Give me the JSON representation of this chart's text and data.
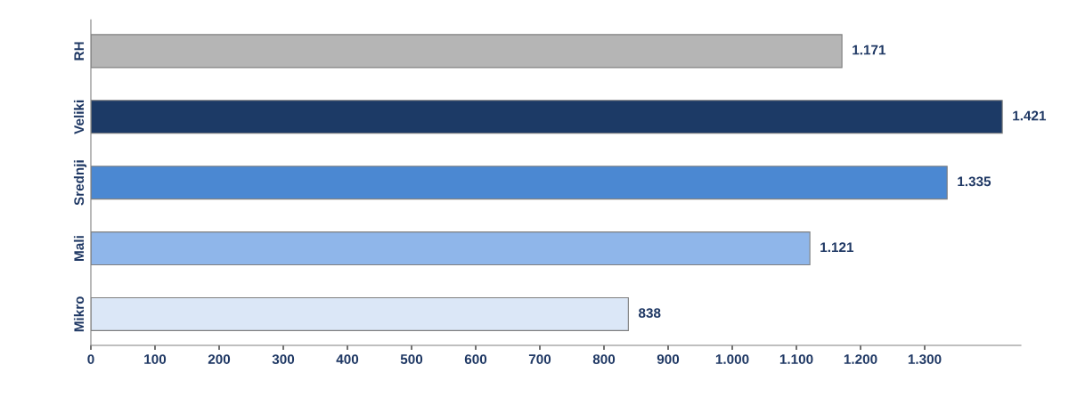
{
  "chart_data": {
    "type": "bar",
    "orientation": "horizontal",
    "categories": [
      "RH",
      "Veliki",
      "Srednji",
      "Mali",
      "Mikro"
    ],
    "values": [
      1171,
      1421,
      1335,
      1121,
      838
    ],
    "colors": [
      "#b5b5b5",
      "#1c3a66",
      "#4b88d2",
      "#8fb6ea",
      "#dbe7f7"
    ],
    "value_labels": [
      "1.171",
      "1.421",
      "1.335",
      "1.121",
      "838"
    ],
    "xlim": [
      0,
      1450
    ],
    "xticks": [
      0,
      100,
      200,
      300,
      400,
      500,
      600,
      700,
      800,
      900,
      {
        "value": 1000,
        "label": "1.000"
      },
      {
        "value": 1100,
        "label": "1.100"
      },
      {
        "value": 1200,
        "label": "1.200"
      },
      {
        "value": 1300,
        "label": "1.300"
      }
    ],
    "grid": false,
    "legend": false
  }
}
